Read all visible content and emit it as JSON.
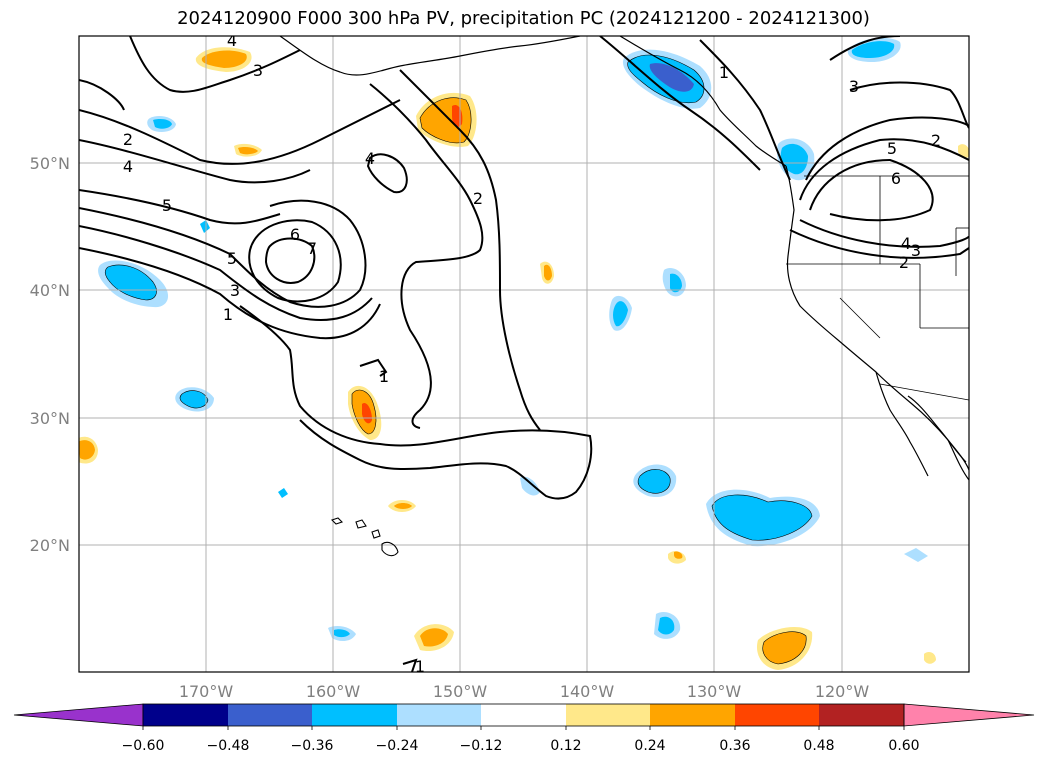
{
  "title": "2024120900 F000 300 hPa PV, precipitation PC (2024121200 - 2024121300)",
  "longitude_labels": [
    "170°W",
    "160°W",
    "150°W",
    "140°W",
    "130°W",
    "120°W"
  ],
  "latitude_labels": [
    "50°N",
    "40°N",
    "30°N",
    "20°N"
  ],
  "colorbar": {
    "tick_labels": [
      "−0.60",
      "−0.48",
      "−0.36",
      "−0.24",
      "−0.12",
      "0.12",
      "0.24",
      "0.36",
      "0.48",
      "0.60"
    ],
    "colors": [
      "#9932CC",
      "#00008B",
      "#3A5FCD",
      "#00BFFF",
      "#ADDFFF",
      "#FFFFFF",
      "#FFE88A",
      "#FFA500",
      "#FF4500",
      "#B22222",
      "#FF82AB"
    ]
  },
  "pv_contour_labels": [
    "4",
    "3",
    "2",
    "4",
    "5",
    "6",
    "7",
    "5",
    "3",
    "1",
    "4",
    "2",
    "1",
    "1",
    "1",
    "3",
    "2",
    "5",
    "6",
    "4",
    "3",
    "2"
  ]
}
